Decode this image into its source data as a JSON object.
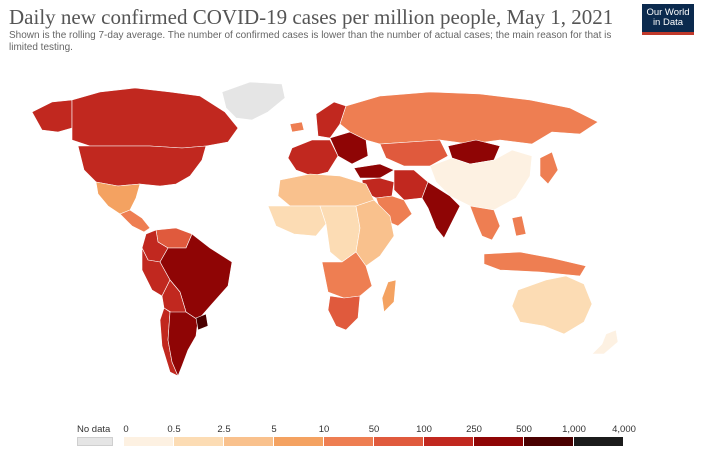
{
  "header": {
    "title": "Daily new confirmed COVID-19 cases per million people, May 1, 2021",
    "subtitle": "Shown is the rolling 7-day average. The number of confirmed cases is lower than the number of actual cases; the main reason for that is limited testing.",
    "logo_line1": "Our World",
    "logo_line2": "in Data"
  },
  "colors": {
    "no_data": "#e5e5e5",
    "bins": [
      "#fdf1e2",
      "#fcdcb4",
      "#f9c18d",
      "#f4a261",
      "#ee7e52",
      "#e05a3d",
      "#c1281f",
      "#8f0505",
      "#4a0000",
      "#1b1b1b"
    ]
  },
  "legend": {
    "no_data_label": "No data",
    "ticks": [
      "0",
      "0.5",
      "2.5",
      "5",
      "10",
      "50",
      "100",
      "250",
      "500",
      "1,000",
      "4,000"
    ]
  },
  "regions": [
    {
      "name": "greenland",
      "bin": -1
    },
    {
      "name": "canada",
      "bin": 6
    },
    {
      "name": "alaska",
      "bin": 6
    },
    {
      "name": "usa",
      "bin": 6
    },
    {
      "name": "mexico",
      "bin": 3
    },
    {
      "name": "central-america",
      "bin": 4
    },
    {
      "name": "venezuela",
      "bin": 5
    },
    {
      "name": "colombia",
      "bin": 6
    },
    {
      "name": "brazil",
      "bin": 7
    },
    {
      "name": "peru",
      "bin": 6
    },
    {
      "name": "bolivia",
      "bin": 6
    },
    {
      "name": "argentina",
      "bin": 7
    },
    {
      "name": "chile",
      "bin": 6
    },
    {
      "name": "uruguay",
      "bin": 8
    },
    {
      "name": "iceland",
      "bin": 4
    },
    {
      "name": "western-europe",
      "bin": 6
    },
    {
      "name": "scandinavia",
      "bin": 6
    },
    {
      "name": "eastern-europe",
      "bin": 7
    },
    {
      "name": "russia",
      "bin": 4
    },
    {
      "name": "kazakhstan",
      "bin": 5
    },
    {
      "name": "mongolia",
      "bin": 7
    },
    {
      "name": "china",
      "bin": 0
    },
    {
      "name": "turkey",
      "bin": 7
    },
    {
      "name": "middle-east",
      "bin": 6
    },
    {
      "name": "iran",
      "bin": 6
    },
    {
      "name": "india",
      "bin": 7
    },
    {
      "name": "southeast-asia",
      "bin": 4
    },
    {
      "name": "japan",
      "bin": 4
    },
    {
      "name": "indonesia",
      "bin": 4
    },
    {
      "name": "philippines",
      "bin": 4
    },
    {
      "name": "north-africa",
      "bin": 2
    },
    {
      "name": "west-africa",
      "bin": 1
    },
    {
      "name": "central-africa",
      "bin": 1
    },
    {
      "name": "east-africa",
      "bin": 2
    },
    {
      "name": "southern-africa",
      "bin": 4
    },
    {
      "name": "south-africa",
      "bin": 5
    },
    {
      "name": "madagascar",
      "bin": 3
    },
    {
      "name": "australia",
      "bin": 1
    },
    {
      "name": "new-zealand",
      "bin": 0
    },
    {
      "name": "arabia",
      "bin": 4
    }
  ]
}
